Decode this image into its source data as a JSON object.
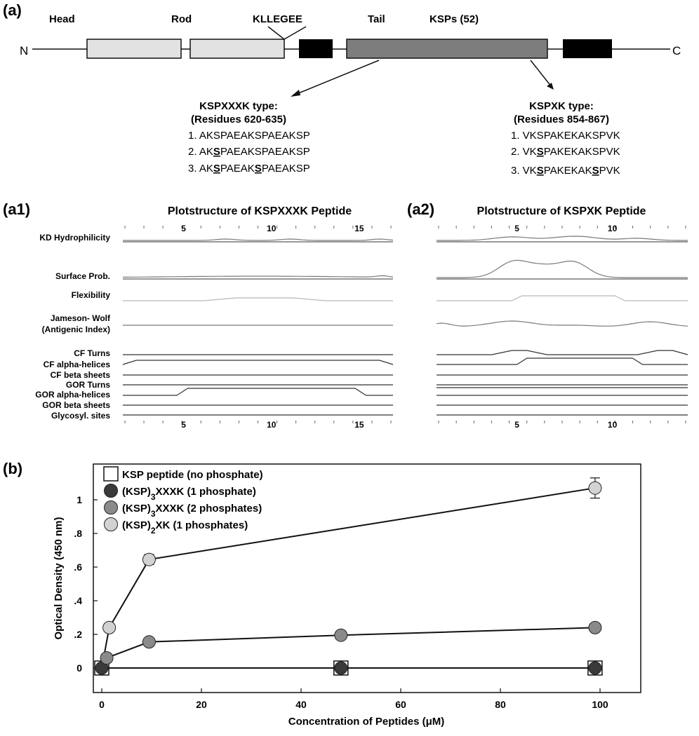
{
  "panel_a": {
    "label": "(a)",
    "n_term": "N",
    "c_term": "C",
    "domains": [
      "Head",
      "Rod",
      "KLLEGEE",
      "Tail",
      "KSPs (52)"
    ],
    "left_group": {
      "title": "KSPXXXK type:",
      "residues": "(Residues 620-635)",
      "sequences": [
        [
          "1. AKSPAEAKSPAEAKSP"
        ],
        [
          "2. AK",
          "S",
          "PAEAKSPAEAKSP"
        ],
        [
          "3. AK",
          "S",
          "PAEAK",
          "S",
          "PAEAKSP"
        ]
      ]
    },
    "right_group": {
      "title": "KSPXK type:",
      "residues": "(Residues 854-867)",
      "sequences": [
        [
          "1. VKSPAKEKAKSPVK"
        ],
        [
          "2. VK",
          "S",
          "PAKEKAKSPVK"
        ],
        [
          "3. VK",
          "S",
          "PAKEKAK",
          "S",
          "PVK"
        ]
      ]
    }
  },
  "panel_a1": {
    "label": "(a1)",
    "title": "Plotstructure of KSPXXXK Peptide",
    "ticks": [
      "5",
      "10",
      "15"
    ]
  },
  "panel_a2": {
    "label": "(a2)",
    "title": "Plotstructure of KSPXK Peptide",
    "ticks": [
      "5",
      "10"
    ]
  },
  "track_labels": [
    "KD Hydrophilicity",
    "Surface Prob.",
    "Flexibility",
    "Jameson- Wolf",
    "(Antigenic Index)",
    "CF Turns",
    "CF alpha-helices",
    "CF beta sheets",
    "GOR Turns",
    "GOR alpha-helices",
    "GOR beta sheets",
    "Glycosyl. sites"
  ],
  "panel_b": {
    "label": "(b)"
  },
  "chart_data": {
    "type": "line",
    "xlabel": "Concentration of Peptides (μM)",
    "ylabel": "Optical Density (450 nm)",
    "xlim": [
      0,
      105
    ],
    "ylim": [
      -0.05,
      1.15
    ],
    "x_ticks": [
      "0",
      "20",
      "40",
      "60",
      "80",
      "100"
    ],
    "y_ticks": [
      "0",
      ".2",
      ".4",
      ".6",
      ".8",
      "1"
    ],
    "legend_position": "top-left",
    "series": [
      {
        "name": "KSP peptide (no phosphate)",
        "marker": "square",
        "color": "#ffffff",
        "x": [
          0,
          48,
          99
        ],
        "y": [
          0.0,
          0.0,
          0.0
        ]
      },
      {
        "name": "(KSP)3XXXK (1 phosphate)",
        "marker": "circle",
        "color": "#3a3a3a",
        "x": [
          0,
          48,
          99
        ],
        "y": [
          0.0,
          0.0,
          0.0
        ]
      },
      {
        "name": "(KSP)3XXXK (2 phosphates)",
        "marker": "circle",
        "color": "#8a8a8a",
        "x": [
          1,
          9.5,
          48,
          99
        ],
        "y": [
          0.06,
          0.155,
          0.195,
          0.24
        ]
      },
      {
        "name": "(KSP)2XK (1 phosphates)",
        "marker": "circle",
        "color": "#d2d2d2",
        "x": [
          1.5,
          9.5,
          99
        ],
        "y": [
          0.24,
          0.645,
          1.07
        ],
        "error": [
          0,
          0.03,
          0.06
        ]
      }
    ]
  }
}
